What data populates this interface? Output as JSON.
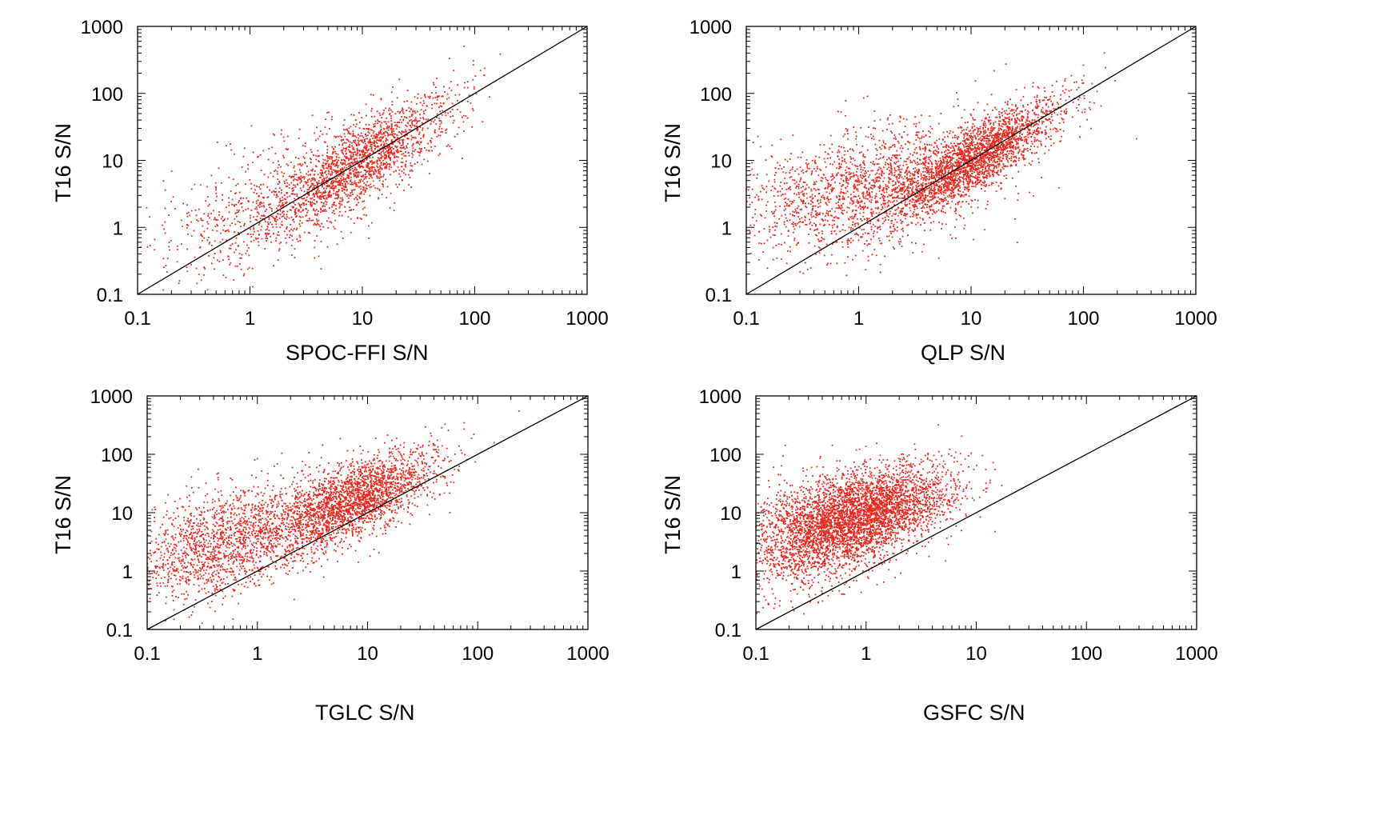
{
  "chart_data": [
    {
      "type": "scatter",
      "xlabel": "SPOC-FFI S/N",
      "ylabel": "T16 S/N",
      "xscale": "log",
      "yscale": "log",
      "xlim": [
        0.1,
        1000
      ],
      "ylim": [
        0.1,
        1000
      ],
      "xticks": [
        "0.1",
        "1",
        "10",
        "100",
        "1000"
      ],
      "yticks": [
        "0.1",
        "1",
        "10",
        "100",
        "1000"
      ],
      "reference_line": "y = x",
      "grid": false,
      "marker_color": "#e8261c",
      "line_color": "#000000",
      "point_count": 2500,
      "distribution": {
        "clusters": [
          {
            "weight": 0.7,
            "x_log_mean": 1.0,
            "x_log_sd": 0.42,
            "corr_slope": 0.95,
            "y_log_offset": 0.05,
            "y_log_sd": 0.3
          },
          {
            "weight": 0.3,
            "x_log_mean": 0.2,
            "x_log_sd": 0.55,
            "corr_slope": 0.55,
            "y_log_offset": 0.25,
            "y_log_sd": 0.45
          }
        ]
      }
    },
    {
      "type": "scatter",
      "xlabel": "QLP S/N",
      "ylabel": "T16 S/N",
      "xscale": "log",
      "yscale": "log",
      "xlim": [
        0.1,
        1000
      ],
      "ylim": [
        0.1,
        1000
      ],
      "xticks": [
        "0.1",
        "1",
        "10",
        "100",
        "1000"
      ],
      "yticks": [
        "0.1",
        "1",
        "10",
        "100",
        "1000"
      ],
      "reference_line": "y = x",
      "grid": false,
      "marker_color": "#e8261c",
      "line_color": "#000000",
      "point_count": 4200,
      "distribution": {
        "clusters": [
          {
            "weight": 0.55,
            "x_log_mean": 1.05,
            "x_log_sd": 0.38,
            "corr_slope": 0.95,
            "y_log_offset": 0.05,
            "y_log_sd": 0.25
          },
          {
            "weight": 0.45,
            "x_log_mean": 0.1,
            "x_log_sd": 0.6,
            "corr_slope": 0.35,
            "y_log_offset": 0.55,
            "y_log_sd": 0.45
          }
        ]
      }
    },
    {
      "type": "scatter",
      "xlabel": "TGLC S/N",
      "ylabel": "T16 S/N",
      "xscale": "log",
      "yscale": "log",
      "xlim": [
        0.1,
        1000
      ],
      "ylim": [
        0.1,
        1000
      ],
      "xticks": [
        "0.1",
        "1",
        "10",
        "100",
        "1000"
      ],
      "yticks": [
        "0.1",
        "1",
        "10",
        "100",
        "1000"
      ],
      "reference_line": "y = x",
      "grid": false,
      "marker_color": "#e8261c",
      "line_color": "#000000",
      "point_count": 4000,
      "distribution": {
        "clusters": [
          {
            "weight": 0.6,
            "x_log_mean": 0.85,
            "x_log_sd": 0.38,
            "corr_slope": 0.75,
            "y_log_offset": 0.55,
            "y_log_sd": 0.32
          },
          {
            "weight": 0.4,
            "x_log_mean": -0.3,
            "x_log_sd": 0.45,
            "corr_slope": 0.5,
            "y_log_offset": 0.65,
            "y_log_sd": 0.45
          }
        ]
      }
    },
    {
      "type": "scatter",
      "xlabel": "GSFC S/N",
      "ylabel": "T16 S/N",
      "xscale": "log",
      "yscale": "log",
      "xlim": [
        0.1,
        1000
      ],
      "ylim": [
        0.1,
        1000
      ],
      "xticks": [
        "0.1",
        "1",
        "10",
        "100",
        "1000"
      ],
      "yticks": [
        "0.1",
        "1",
        "10",
        "100",
        "1000"
      ],
      "reference_line": "y = x",
      "grid": false,
      "marker_color": "#e8261c",
      "line_color": "#000000",
      "point_count": 4600,
      "distribution": {
        "clusters": [
          {
            "weight": 0.6,
            "x_log_mean": 0.05,
            "x_log_sd": 0.38,
            "corr_slope": 0.45,
            "y_log_offset": 1.0,
            "y_log_sd": 0.35
          },
          {
            "weight": 0.4,
            "x_log_mean": -0.45,
            "x_log_sd": 0.35,
            "corr_slope": 0.4,
            "y_log_offset": 0.8,
            "y_log_sd": 0.45
          }
        ]
      }
    }
  ]
}
